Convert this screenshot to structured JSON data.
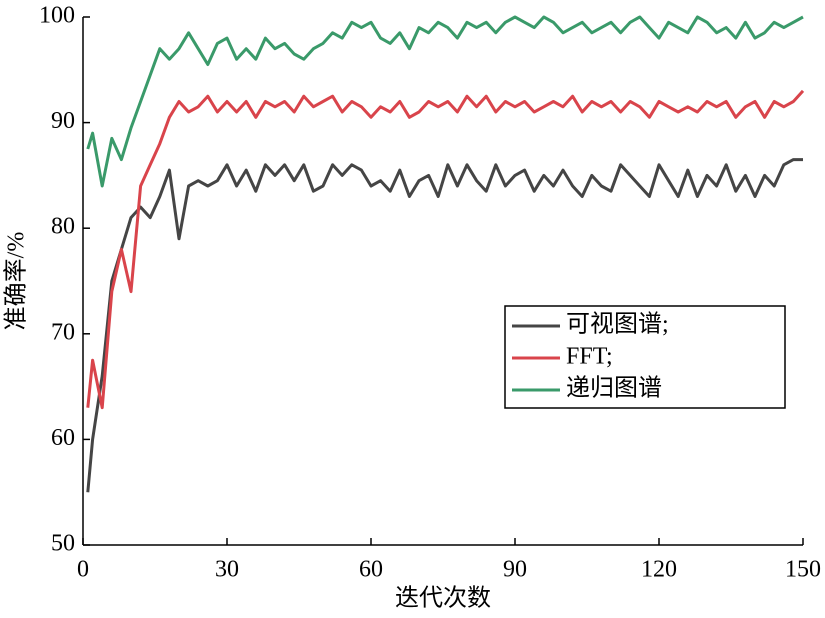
{
  "chart_data": {
    "type": "line",
    "xlabel": "迭代次数",
    "ylabel": "准确率/%",
    "x": [
      1,
      2,
      4,
      6,
      8,
      10,
      12,
      14,
      16,
      18,
      20,
      22,
      24,
      26,
      28,
      30,
      32,
      34,
      36,
      38,
      40,
      42,
      44,
      46,
      48,
      50,
      52,
      54,
      56,
      58,
      60,
      62,
      64,
      66,
      68,
      70,
      72,
      74,
      76,
      78,
      80,
      82,
      84,
      86,
      88,
      90,
      92,
      94,
      96,
      98,
      100,
      102,
      104,
      106,
      108,
      110,
      112,
      114,
      116,
      118,
      120,
      122,
      124,
      126,
      128,
      130,
      132,
      134,
      136,
      138,
      140,
      142,
      144,
      146,
      148,
      150
    ],
    "series": [
      {
        "name": "可视图谱;",
        "color": "#454545",
        "values": [
          55,
          60,
          66,
          75,
          78,
          81,
          82,
          81,
          83,
          85.5,
          79,
          84,
          84.5,
          84,
          84.5,
          86,
          84,
          85.5,
          83.5,
          86,
          85,
          86,
          84.5,
          86,
          83.5,
          84,
          86,
          85,
          86,
          85.5,
          84,
          84.5,
          83.5,
          85.5,
          83,
          84.5,
          85,
          83,
          86,
          84,
          86,
          84.5,
          83.5,
          86,
          84,
          85,
          85.5,
          83.5,
          85,
          84,
          85.5,
          84,
          83,
          85,
          84,
          83.5,
          86,
          85,
          84,
          83,
          86,
          84.5,
          83,
          85.5,
          83,
          85,
          84,
          86,
          83.5,
          85,
          83,
          85,
          84,
          86,
          86.5,
          86.5
        ]
      },
      {
        "name": "FFT;",
        "color": "#d9444b",
        "values": [
          63,
          67.5,
          63,
          74,
          78,
          74,
          84,
          86,
          88,
          90.5,
          92,
          91,
          91.5,
          92.5,
          91,
          92,
          91,
          92,
          90.5,
          92,
          91.5,
          92,
          91,
          92.5,
          91.5,
          92,
          92.5,
          91,
          92,
          91.5,
          90.5,
          91.5,
          91,
          92,
          90.5,
          91,
          92,
          91.5,
          92,
          91,
          92.5,
          91.5,
          92.5,
          91,
          92,
          91.5,
          92,
          91,
          91.5,
          92,
          91.5,
          92.5,
          91,
          92,
          91.5,
          92,
          91,
          92,
          91.5,
          90.5,
          92,
          91.5,
          91,
          91.5,
          91,
          92,
          91.5,
          92,
          90.5,
          91.5,
          92,
          90.5,
          92,
          91.5,
          92,
          93
        ]
      },
      {
        "name": "递归图谱",
        "color": "#3a9a6a",
        "values": [
          87.5,
          89,
          84,
          88.5,
          86.5,
          89.5,
          92,
          94.5,
          97,
          96,
          97,
          98.5,
          97,
          95.5,
          97.5,
          98,
          96,
          97,
          96,
          98,
          97,
          97.5,
          96.5,
          96,
          97,
          97.5,
          98.5,
          98,
          99.5,
          99,
          99.5,
          98,
          97.5,
          98.5,
          97,
          99,
          98.5,
          99.5,
          99,
          98,
          99.5,
          99,
          99.5,
          98.5,
          99.5,
          100,
          99.5,
          99,
          100,
          99.5,
          98.5,
          99,
          99.5,
          98.5,
          99,
          99.5,
          98.5,
          99.5,
          100,
          99,
          98,
          99.5,
          99,
          98.5,
          100,
          99.5,
          98.5,
          99,
          98,
          99.5,
          98,
          98.5,
          99.5,
          99,
          99.5,
          100
        ]
      }
    ],
    "xlim": [
      0,
      150
    ],
    "xticks": [
      0,
      30,
      60,
      90,
      120,
      150
    ],
    "ylim": [
      50,
      100
    ],
    "yticks": [
      50,
      60,
      70,
      80,
      90,
      100
    ]
  }
}
